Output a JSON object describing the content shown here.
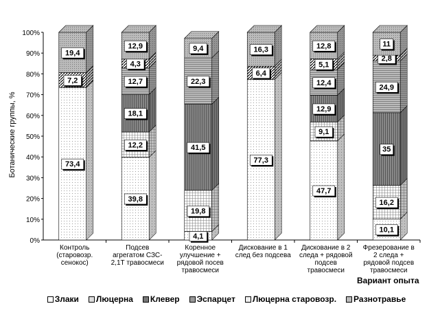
{
  "chart_data": {
    "type": "bar",
    "stacked": true,
    "style": "3d",
    "title": "",
    "ylabel": "Ботанические группы, %",
    "xlabel": "Вариант опыта",
    "ylim": [
      0,
      100
    ],
    "yticks": [
      "0%",
      "10%",
      "20%",
      "30%",
      "40%",
      "50%",
      "60%",
      "70%",
      "80%",
      "90%",
      "100%"
    ],
    "categories": [
      [
        "Контроль",
        "(старовозр.",
        "сенокос)"
      ],
      [
        "Подсев",
        "агрегатом СЗС-",
        "2,1Т травосмеси"
      ],
      [
        "Коренное",
        "улучшение +",
        "рядовой посев",
        "травосмеси"
      ],
      [
        "Дискование в 1",
        "след без подсева"
      ],
      [
        "Дискование в 2",
        "следа + рядовой",
        "подсев",
        "травосмеси"
      ],
      [
        "Фрезерование в",
        "2 следа +",
        "рядовой подсев",
        "травосмеси"
      ]
    ],
    "series": [
      {
        "name": "Злаки",
        "values": [
          73.4,
          39.8,
          4.1,
          77.3,
          47.7,
          10.1
        ],
        "labels": [
          "73,4",
          "39,8",
          "4,1",
          "77,3",
          "47,7",
          "10,1"
        ]
      },
      {
        "name": "Люцерна",
        "values": [
          0,
          12.2,
          19.8,
          0,
          9.1,
          16.2
        ],
        "labels": [
          "",
          "12,2",
          "19,8",
          "",
          "9,1",
          "16,2"
        ]
      },
      {
        "name": "Клевер",
        "values": [
          0,
          18.1,
          41.5,
          0,
          12.9,
          35
        ],
        "labels": [
          "",
          "18,1",
          "41,5",
          "",
          "12,9",
          "35"
        ]
      },
      {
        "name": "Эспарцет",
        "values": [
          0,
          12.7,
          22.3,
          0,
          12.4,
          24.9
        ],
        "labels": [
          "",
          "12,7",
          "22,3",
          "",
          "12,4",
          "24,9"
        ]
      },
      {
        "name": "Люцерна старовозр.",
        "values": [
          7.2,
          4.3,
          0,
          6.4,
          5.1,
          2.8
        ],
        "labels": [
          "7,2",
          "4,3",
          "",
          "6,4",
          "5,1",
          "2,8"
        ]
      },
      {
        "name": "Разнотравье",
        "values": [
          19.4,
          12.9,
          9.4,
          16.3,
          12.8,
          11
        ],
        "labels": [
          "19,4",
          "12,9",
          "9,4",
          "16,3",
          "12,8",
          "11"
        ]
      }
    ],
    "legend_position": "bottom"
  }
}
